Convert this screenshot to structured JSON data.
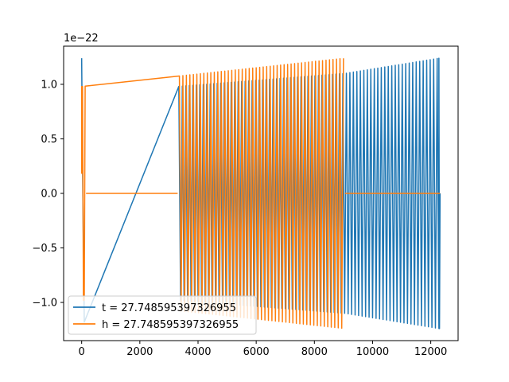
{
  "chart_data": {
    "type": "line",
    "title": "",
    "xlabel": "",
    "ylabel": "",
    "offset_text": "1e−22",
    "xlim": [
      -620,
      12940
    ],
    "ylim": [
      -1.35,
      1.35
    ],
    "xticks": [
      {
        "value": 0,
        "label": "0"
      },
      {
        "value": 2000,
        "label": "2000"
      },
      {
        "value": 4000,
        "label": "4000"
      },
      {
        "value": 6000,
        "label": "6000"
      },
      {
        "value": 8000,
        "label": "8000"
      },
      {
        "value": 10000,
        "label": "10000"
      },
      {
        "value": 12000,
        "label": "12000"
      }
    ],
    "yticks": [
      {
        "value": -1.0,
        "label": "−1.0"
      },
      {
        "value": -0.5,
        "label": "−0.5"
      },
      {
        "value": 0.0,
        "label": "0.0"
      },
      {
        "value": 0.5,
        "label": "0.5"
      },
      {
        "value": 1.0,
        "label": "1.0"
      }
    ],
    "grid": false,
    "legend_position": "lower-left",
    "series": [
      {
        "name": "t = 27.748595397326955",
        "color": "#1f77b4",
        "points": [
          [
            0,
            1.24
          ],
          [
            40,
            0.0
          ],
          [
            90,
            -1.18
          ],
          [
            12280,
            1.24
          ],
          [
            12300,
            -1.24
          ],
          [
            12320,
            0.0
          ]
        ],
        "envelope": {
          "segments": [
            {
              "x_start": 100,
              "x_end": 3300,
              "amp_start": 0.0,
              "amp_end": 0.0
            },
            {
              "x_start": 3300,
              "x_end": 9050,
              "amp_start": 0.98,
              "amp_end": 1.1
            },
            {
              "x_start": 9050,
              "x_end": 12300,
              "amp_start": 1.1,
              "amp_end": 1.24
            }
          ],
          "period": 120
        }
      },
      {
        "name": "h = 27.748595397326955",
        "color": "#ff7f0e",
        "points": [
          [
            0,
            0.18
          ],
          [
            30,
            0.98
          ],
          [
            90,
            -0.98
          ]
        ],
        "envelope": {
          "segments": [
            {
              "x_start": 0,
              "x_end": 9050,
              "amp_start": 0.98,
              "amp_end": 1.24
            }
          ],
          "gaps": [
            {
              "x_start": 150,
              "x_end": 3300
            }
          ],
          "flat_segments": [
            {
              "x_start": 150,
              "x_end": 3300,
              "y": 0.0
            },
            {
              "x_start": 9050,
              "x_end": 12320,
              "y": 0.0
            }
          ],
          "period": 120
        }
      }
    ]
  }
}
